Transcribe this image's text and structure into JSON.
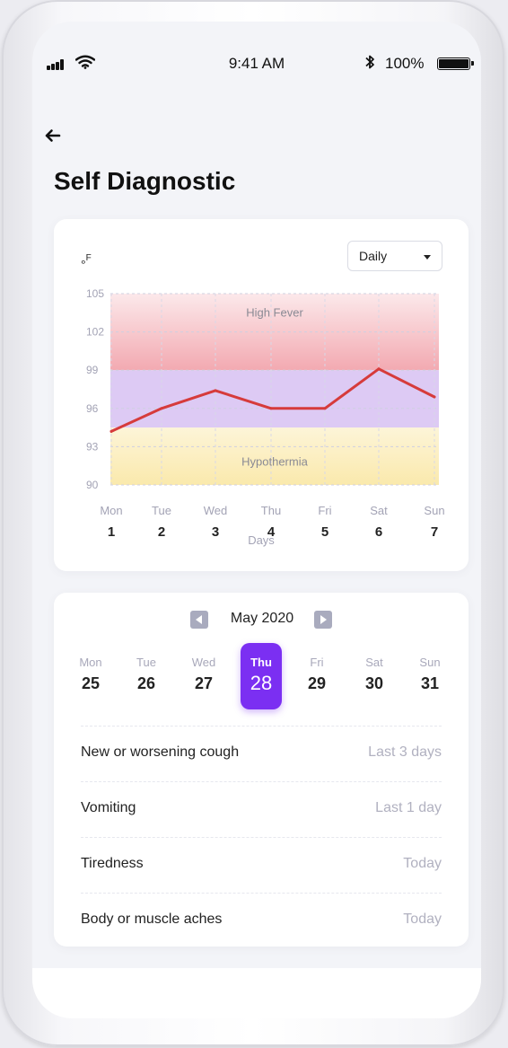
{
  "status_bar": {
    "time": "9:41 AM",
    "battery": "100%",
    "bluetooth_icon": "ĸ"
  },
  "header": {
    "title": "Self Diagnostic"
  },
  "chart_card": {
    "unit_symbol": "°",
    "unit_letter": "F",
    "period_select": "Daily",
    "x_axis_title": "Days"
  },
  "chart_data": {
    "type": "line",
    "ylabel": "°F",
    "xlabel": "Days",
    "ylim": [
      90,
      105
    ],
    "yticks": [
      105,
      102,
      99,
      96,
      93,
      90
    ],
    "categories": [
      {
        "name": "Mon",
        "num": "1"
      },
      {
        "name": "Tue",
        "num": "2"
      },
      {
        "name": "Wed",
        "num": "3"
      },
      {
        "name": "Thu",
        "num": "4"
      },
      {
        "name": "Fri",
        "num": "5"
      },
      {
        "name": "Sat",
        "num": "6"
      },
      {
        "name": "Sun",
        "num": "7"
      }
    ],
    "series": [
      {
        "values": [
          94.2,
          96.0,
          97.4,
          96.0,
          96.0,
          99.1,
          96.9
        ],
        "color": "#d63b3b"
      }
    ],
    "bands": [
      {
        "label": "High Fever",
        "from": 99,
        "to": 105,
        "color": "#f2a5ad"
      },
      {
        "label": "",
        "from": 94.5,
        "to": 99,
        "color": "#d9c4f3"
      },
      {
        "label": "Hypothermia",
        "from": 90,
        "to": 94.5,
        "color": "#fae8a8"
      }
    ],
    "grid": true
  },
  "calendar": {
    "month": "May 2020",
    "days": [
      {
        "name": "Mon",
        "num": "25",
        "selected": false
      },
      {
        "name": "Tue",
        "num": "26",
        "selected": false
      },
      {
        "name": "Wed",
        "num": "27",
        "selected": false
      },
      {
        "name": "Thu",
        "num": "28",
        "selected": true
      },
      {
        "name": "Fri",
        "num": "29",
        "selected": false
      },
      {
        "name": "Sat",
        "num": "30",
        "selected": false
      },
      {
        "name": "Sun",
        "num": "31",
        "selected": false
      }
    ],
    "accent_color": "#7b2ff2"
  },
  "symptoms": [
    {
      "name": "New or worsening cough",
      "when": "Last 3 days"
    },
    {
      "name": "Vomiting",
      "when": "Last 1 day"
    },
    {
      "name": "Tiredness",
      "when": "Today"
    },
    {
      "name": "Body or muscle aches",
      "when": "Today"
    }
  ],
  "icons": {
    "back": "arrow-left-icon",
    "period": "chevron-down-icon",
    "month_prev": "caret-left-icon",
    "month_next": "caret-right-icon"
  }
}
